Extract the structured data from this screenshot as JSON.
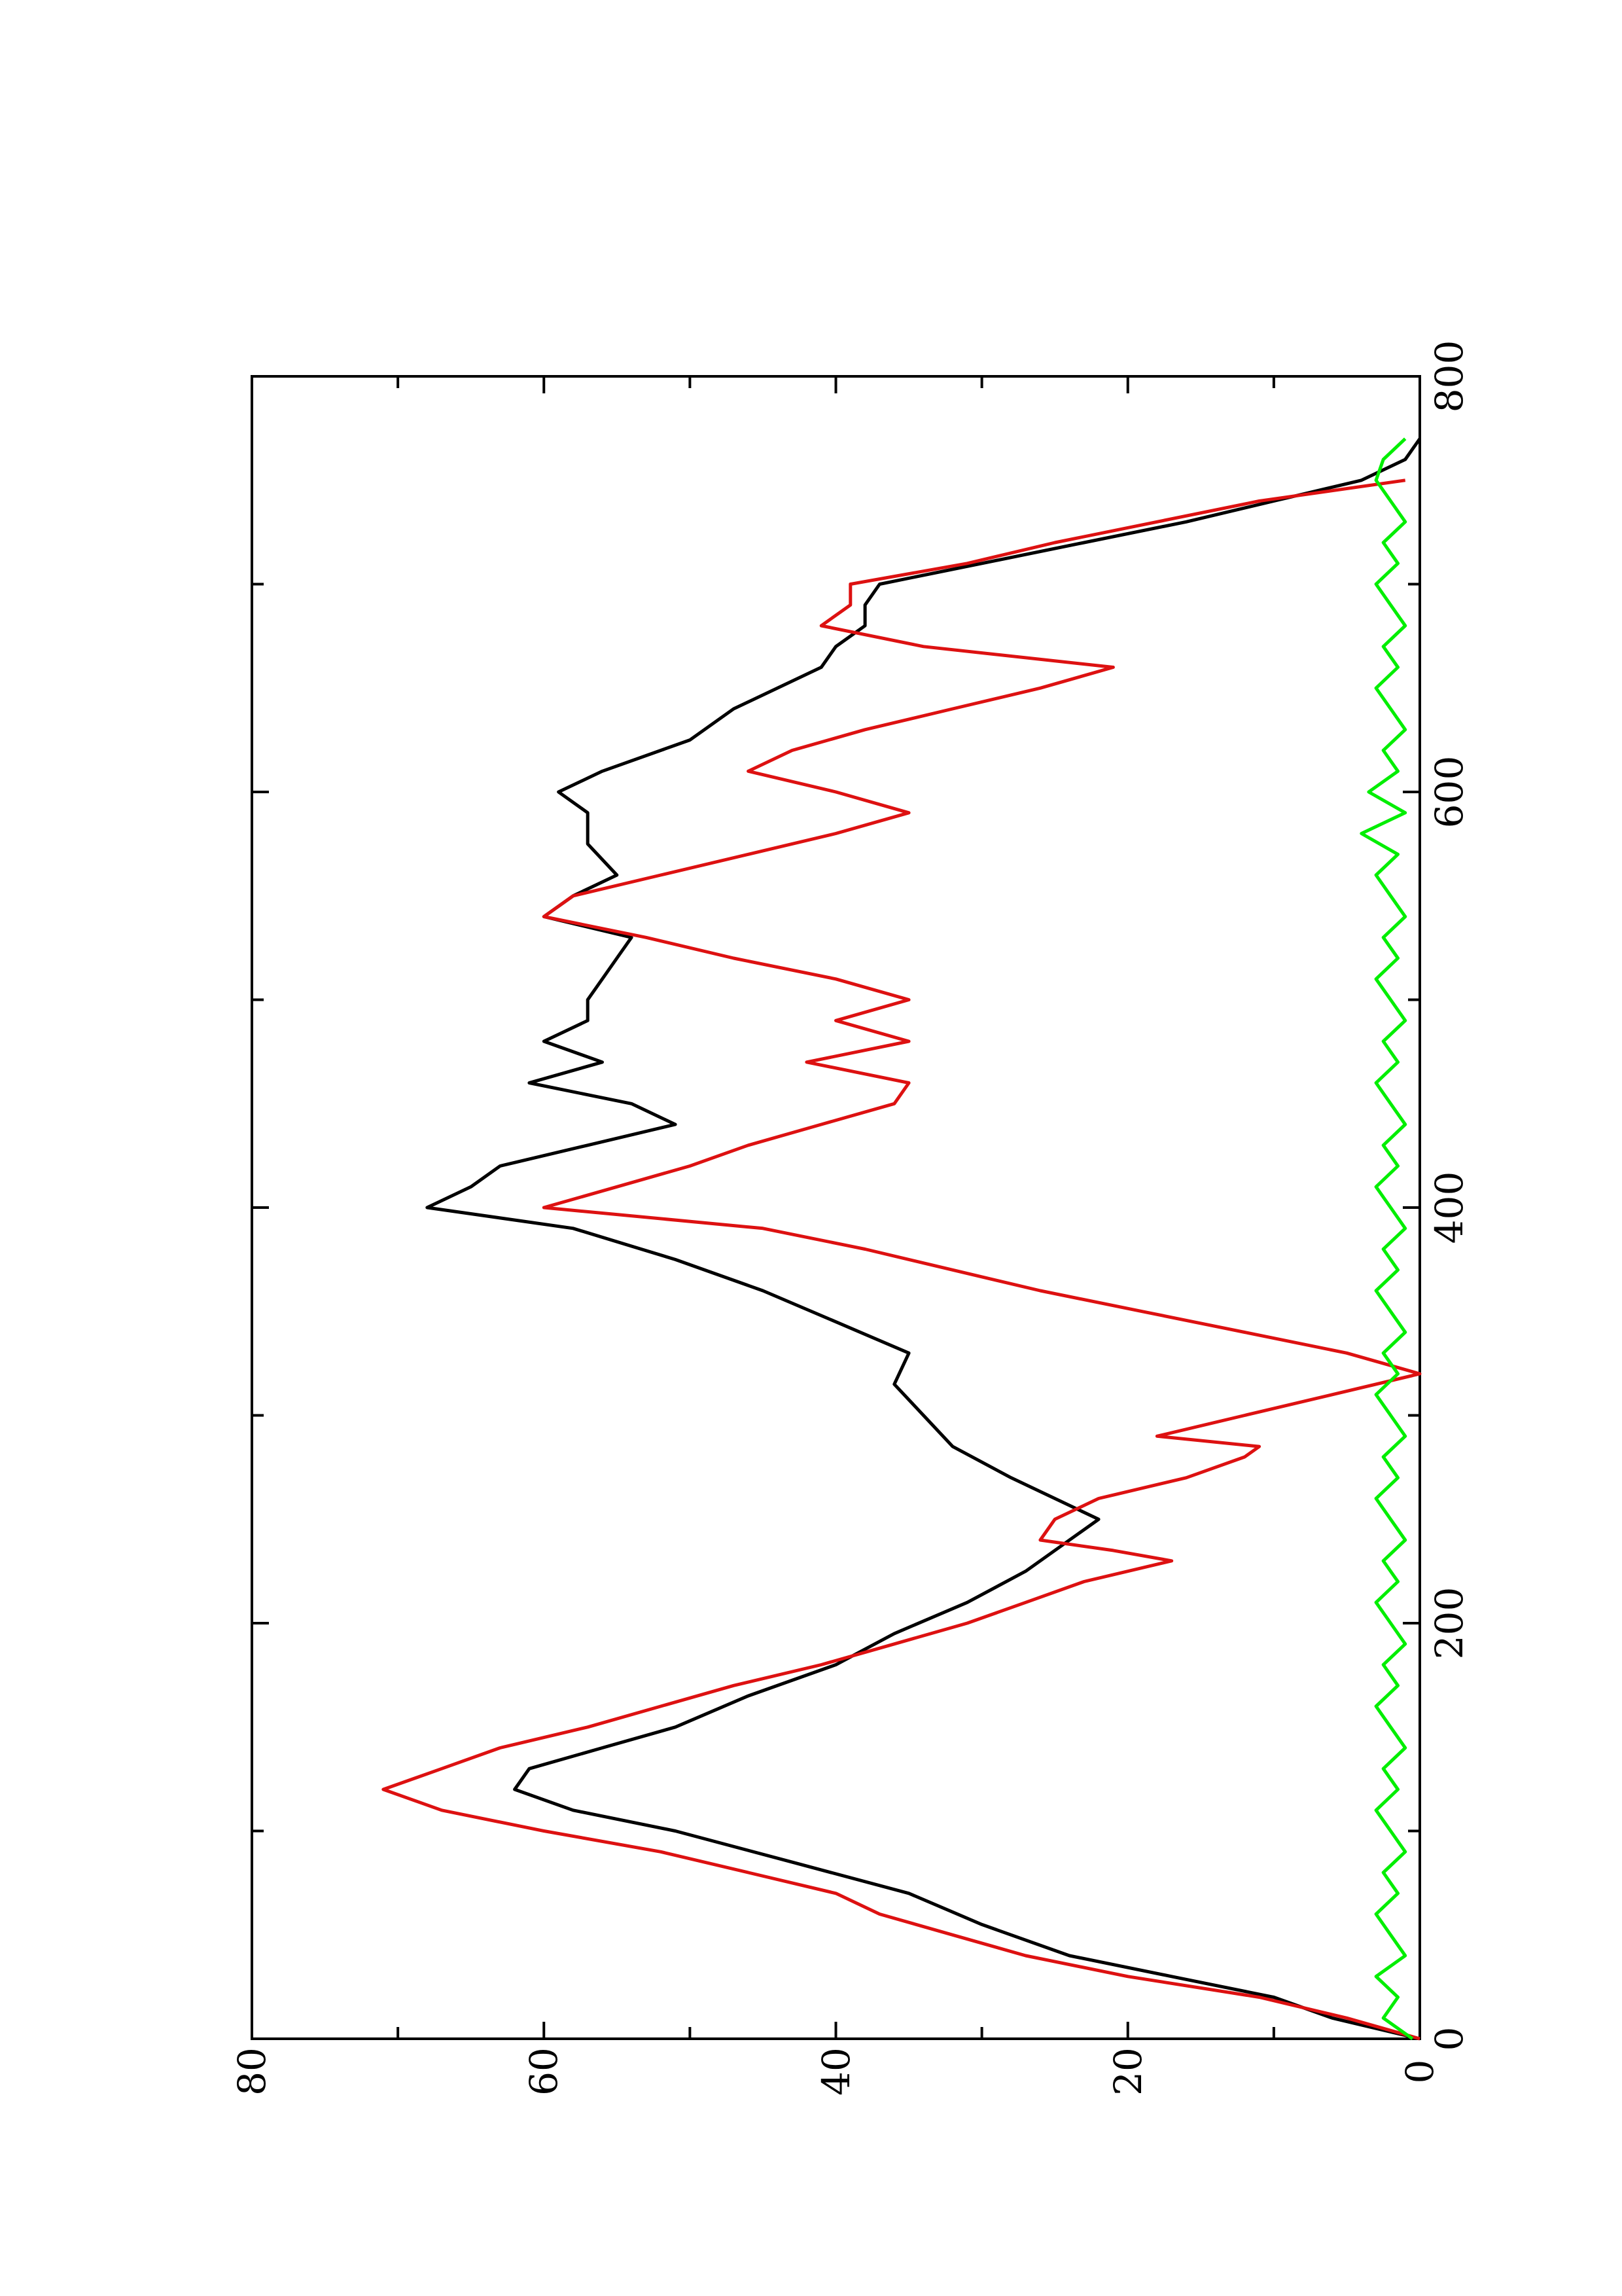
{
  "chart_data": {
    "type": "line",
    "title": "",
    "xlabel": "",
    "ylabel": "",
    "xlim": [
      0,
      800
    ],
    "ylim": [
      0,
      80
    ],
    "x_ticks": [
      "0",
      "200",
      "400",
      "600",
      "800"
    ],
    "y_ticks": [
      "0",
      "20",
      "40",
      "60",
      "80"
    ],
    "grid": false,
    "legend": "none",
    "orientation": "rotated 90° counter-clockwise",
    "series": [
      {
        "color": "#000000",
        "x": [
          0,
          10,
          20,
          30,
          40,
          55,
          70,
          85,
          100,
          110,
          120,
          130,
          140,
          150,
          165,
          180,
          195,
          210,
          225,
          240,
          250,
          260,
          270,
          285,
          300,
          315,
          330,
          345,
          360,
          375,
          390,
          400,
          410,
          420,
          430,
          440,
          450,
          460,
          470,
          480,
          490,
          500,
          510,
          520,
          530,
          540,
          550,
          560,
          575,
          590,
          600,
          610,
          625,
          640,
          650,
          660,
          670,
          680,
          690,
          700,
          710,
          720,
          730,
          740,
          750,
          760,
          770
        ],
        "y": [
          0,
          6,
          10,
          17,
          24,
          30,
          35,
          43,
          51,
          58,
          62,
          61,
          56,
          51,
          46,
          40,
          36,
          31,
          27,
          24,
          22,
          25,
          28,
          32,
          34,
          36,
          35,
          40,
          45,
          51,
          58,
          68,
          65,
          63,
          57,
          51,
          54,
          61,
          56,
          60,
          57,
          57,
          56,
          55,
          54,
          60,
          58,
          55,
          57,
          57,
          59,
          56,
          50,
          47,
          44,
          41,
          40,
          38,
          38,
          37,
          30,
          23,
          16,
          10,
          4,
          1,
          0
        ]
      },
      {
        "color": "#dd1111",
        "x": [
          0,
          10,
          20,
          30,
          40,
          50,
          60,
          70,
          80,
          90,
          100,
          110,
          120,
          130,
          140,
          150,
          160,
          170,
          180,
          190,
          200,
          210,
          220,
          230,
          235,
          240,
          250,
          260,
          270,
          280,
          285,
          290,
          300,
          310,
          320,
          330,
          340,
          350,
          360,
          370,
          380,
          390,
          400,
          410,
          420,
          430,
          440,
          450,
          460,
          470,
          480,
          490,
          500,
          510,
          520,
          530,
          540,
          550,
          560,
          570,
          580,
          590,
          600,
          610,
          620,
          630,
          640,
          650,
          660,
          670,
          680,
          690,
          700,
          710,
          720,
          730,
          740,
          750
        ],
        "y": [
          0,
          5,
          11,
          20,
          27,
          32,
          37,
          40,
          46,
          52,
          60,
          67,
          71,
          67,
          63,
          57,
          52,
          47,
          41,
          36,
          31,
          27,
          23,
          17,
          21,
          26,
          25,
          22,
          16,
          12,
          11,
          18,
          12,
          6,
          0,
          5,
          12,
          19,
          26,
          32,
          38,
          45,
          60,
          55,
          50,
          46,
          41,
          36,
          35,
          42,
          35,
          40,
          35,
          40,
          47,
          53,
          60,
          58,
          52,
          46,
          40,
          35,
          40,
          46,
          43,
          38,
          32,
          26,
          21,
          34,
          41,
          39,
          39,
          31,
          25,
          18,
          11,
          1
        ]
      },
      {
        "color": "#00ee00",
        "x": [
          0,
          10,
          20,
          30,
          40,
          50,
          60,
          70,
          80,
          90,
          100,
          110,
          120,
          130,
          140,
          150,
          160,
          170,
          180,
          190,
          200,
          210,
          220,
          230,
          240,
          250,
          260,
          270,
          280,
          290,
          300,
          310,
          320,
          330,
          340,
          350,
          360,
          370,
          380,
          390,
          400,
          410,
          420,
          430,
          440,
          450,
          460,
          470,
          480,
          490,
          500,
          510,
          520,
          530,
          540,
          550,
          560,
          570,
          580,
          590,
          600,
          610,
          620,
          630,
          640,
          650,
          660,
          670,
          680,
          690,
          700,
          710,
          720,
          730,
          740,
          750,
          760,
          770
        ],
        "y": [
          0.5,
          2.5,
          1.5,
          3.0,
          1.0,
          2.0,
          3.0,
          1.5,
          2.5,
          1.0,
          2.0,
          3.0,
          1.5,
          2.5,
          1.0,
          2.0,
          3.0,
          1.5,
          2.5,
          1.0,
          2.0,
          3.0,
          1.5,
          2.5,
          1.0,
          2.0,
          3.0,
          1.5,
          2.5,
          1.0,
          2.0,
          3.0,
          1.5,
          2.5,
          1.0,
          2.0,
          3.0,
          1.5,
          2.5,
          1.0,
          2.0,
          3.0,
          1.5,
          2.5,
          1.0,
          2.0,
          3.0,
          1.5,
          2.5,
          1.0,
          2.0,
          3.0,
          1.5,
          2.5,
          1.0,
          2.0,
          3.0,
          1.5,
          4.0,
          1.0,
          3.5,
          1.5,
          2.5,
          1.0,
          2.0,
          3.0,
          1.5,
          2.5,
          1.0,
          2.0,
          3.0,
          1.5,
          2.5,
          1.0,
          2.0,
          3.0,
          2.5,
          1.0
        ]
      }
    ]
  }
}
